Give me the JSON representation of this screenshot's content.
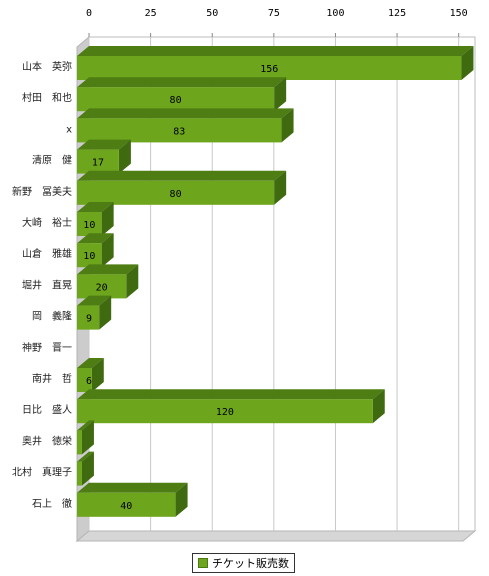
{
  "chart_data": {
    "type": "bar",
    "orientation": "horizontal",
    "render": "3d",
    "categories": [
      "山本　英弥",
      "村田　和也",
      "x",
      "清原　健",
      "新野　冨美夫",
      "大崎　裕士",
      "山倉　雅雄",
      "堀井　直晃",
      "岡　義隆",
      "神野　晋一",
      "南井　哲",
      "日比　盛人",
      "奥井　徳栄",
      "北村　真理子",
      "石上　徹"
    ],
    "series": [
      {
        "name": "チケット販売数",
        "values": [
          156,
          80,
          83,
          17,
          80,
          10,
          10,
          20,
          9,
          0,
          6,
          120,
          2,
          2,
          40
        ],
        "data_labels": [
          "156",
          "80",
          "83",
          "17",
          "80",
          "10",
          "10",
          "20",
          "9",
          "",
          "6",
          "120",
          "",
          "",
          "40"
        ]
      }
    ],
    "xlim": [
      0,
      155
    ],
    "xticks": [
      0,
      25,
      50,
      75,
      100,
      125,
      150
    ],
    "xtick_labels": [
      "0",
      "25",
      "50",
      "75",
      "100",
      "125",
      "150"
    ],
    "grid": true,
    "legend_position": "bottom",
    "colors": {
      "bar_front": "#6da51c",
      "bar_top": "#4e7d14",
      "bar_side": "#3f6a10",
      "wall": "#cccccc",
      "grid": "#c8c8c8"
    }
  }
}
